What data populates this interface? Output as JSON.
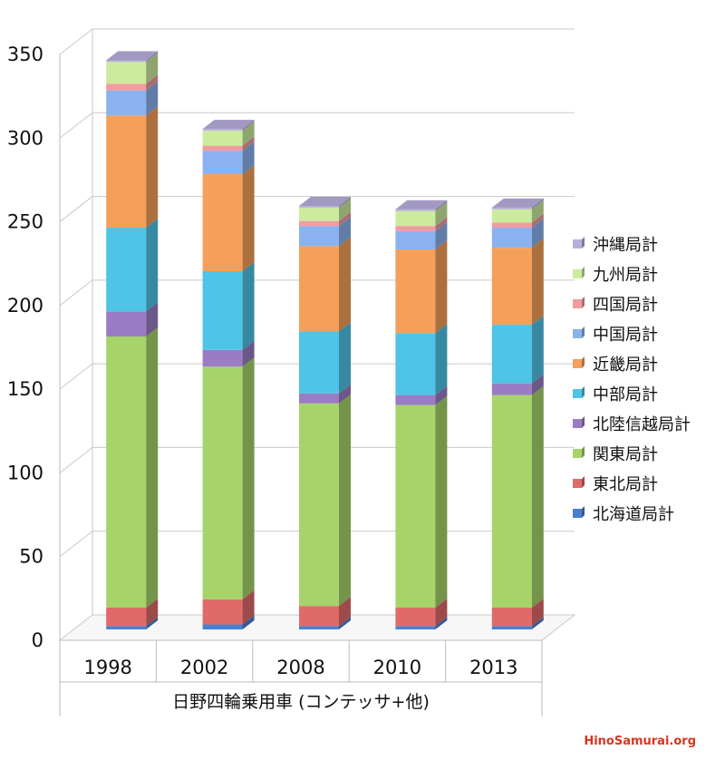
{
  "chart_data": {
    "type": "bar",
    "stacked": true,
    "style": "3d",
    "title": "",
    "xlabel": "日野四輪乗用車 (コンテッサ+他)",
    "ylabel": "",
    "ylim": [
      0,
      350
    ],
    "yticks": [
      0,
      50,
      100,
      150,
      200,
      250,
      300,
      350
    ],
    "grid": true,
    "legend_position": "right",
    "categories": [
      "1998",
      "2002",
      "2008",
      "2010",
      "2013"
    ],
    "series": [
      {
        "name": "北海道局計",
        "color": "#4a7fd0",
        "values": [
          2,
          3,
          2,
          2,
          2
        ]
      },
      {
        "name": "東北局計",
        "color": "#e06a6a",
        "values": [
          11,
          15,
          12,
          11,
          11
        ]
      },
      {
        "name": "関東局計",
        "color": "#a6d46a",
        "values": [
          162,
          139,
          121,
          121,
          127
        ]
      },
      {
        "name": "北陸信越局計",
        "color": "#9a7cc4",
        "values": [
          15,
          10,
          6,
          6,
          7
        ]
      },
      {
        "name": "中部局計",
        "color": "#4ec4e6",
        "values": [
          50,
          47,
          37,
          37,
          35
        ]
      },
      {
        "name": "近畿局計",
        "color": "#f5a05a",
        "values": [
          67,
          58,
          51,
          50,
          46
        ]
      },
      {
        "name": "中国局計",
        "color": "#8ab2ee",
        "values": [
          15,
          14,
          12,
          11,
          12
        ]
      },
      {
        "name": "四国局計",
        "color": "#f29ba0",
        "values": [
          4,
          3,
          3,
          3,
          3
        ]
      },
      {
        "name": "九州局計",
        "color": "#cceb9e",
        "values": [
          13,
          9,
          8,
          9,
          8
        ]
      },
      {
        "name": "沖縄局計",
        "color": "#b8aedc",
        "values": [
          1,
          1,
          1,
          1,
          1
        ]
      }
    ]
  },
  "watermark": "HinoSamurai.org"
}
